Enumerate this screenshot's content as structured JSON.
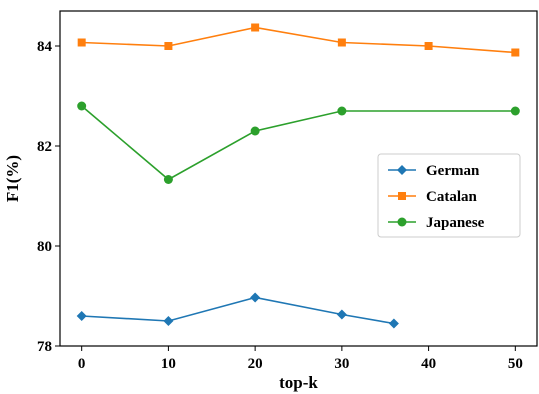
{
  "chart_data": {
    "type": "line",
    "title": "",
    "xlabel": "top-k",
    "ylabel": "F1(%)",
    "xlim": [
      -2.5,
      52.5
    ],
    "ylim": [
      78,
      84.7
    ],
    "xticks": [
      0,
      10,
      20,
      30,
      40,
      50
    ],
    "yticks": [
      78,
      80,
      82,
      84
    ],
    "grid": false,
    "legend_position": "center-right",
    "series": [
      {
        "name": "German",
        "color": "#1f77b4",
        "marker": "diamond",
        "x": [
          0,
          10,
          20,
          30,
          36
        ],
        "y": [
          78.6,
          78.5,
          78.97,
          78.63,
          78.45
        ]
      },
      {
        "name": "Catalan",
        "color": "#ff7f0e",
        "marker": "square",
        "x": [
          0,
          10,
          20,
          30,
          40,
          50
        ],
        "y": [
          84.07,
          84.0,
          84.37,
          84.07,
          84.0,
          83.87
        ]
      },
      {
        "name": "Japanese",
        "color": "#2ca02c",
        "marker": "circle",
        "x": [
          0,
          10,
          20,
          30,
          50
        ],
        "y": [
          82.8,
          81.33,
          82.3,
          82.7,
          82.7
        ]
      }
    ]
  }
}
